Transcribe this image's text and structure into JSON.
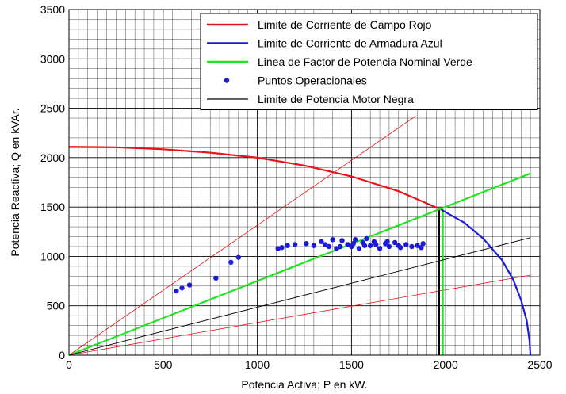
{
  "chart_data": {
    "type": "line",
    "xlabel": "Potencia Activa; P en kW.",
    "ylabel": "Potencia Reactiva; Q en kVAr.",
    "xlim": [
      0,
      2500
    ],
    "ylim": [
      0,
      3500
    ],
    "xticks": [
      0,
      500,
      1000,
      1500,
      2000,
      2500
    ],
    "yticks": [
      0,
      500,
      1000,
      1500,
      2000,
      2500,
      3000,
      3500
    ],
    "grid": "on (major and minor)",
    "legend_position": "top-right",
    "series": [
      {
        "name": "Limite de Corriente de Campo Rojo",
        "color": "#e8141b",
        "style": "line",
        "points": [
          [
            0,
            2110
          ],
          [
            250,
            2105
          ],
          [
            500,
            2085
          ],
          [
            750,
            2050
          ],
          [
            1000,
            2000
          ],
          [
            1250,
            1920
          ],
          [
            1500,
            1810
          ],
          [
            1750,
            1660
          ],
          [
            1975,
            1475
          ]
        ]
      },
      {
        "name": "Limite de Corriente de Armadura Azul",
        "color": "#1c1cd8",
        "style": "line",
        "points": [
          [
            1975,
            1475
          ],
          [
            2100,
            1340
          ],
          [
            2200,
            1180
          ],
          [
            2300,
            960
          ],
          [
            2360,
            760
          ],
          [
            2400,
            560
          ],
          [
            2430,
            350
          ],
          [
            2445,
            150
          ],
          [
            2450,
            0
          ]
        ]
      },
      {
        "name": "Linea de Factor de Potencia Nominal Verde",
        "color": "#22e322",
        "style": "line",
        "points": [
          [
            0,
            0
          ],
          [
            2450,
            1840
          ]
        ]
      },
      {
        "name": "Puntos Operacionales",
        "color": "#1c1cd8",
        "style": "scatter",
        "points": [
          [
            570,
            650
          ],
          [
            600,
            680
          ],
          [
            640,
            710
          ],
          [
            780,
            780
          ],
          [
            860,
            940
          ],
          [
            900,
            990
          ],
          [
            1110,
            1080
          ],
          [
            1130,
            1090
          ],
          [
            1160,
            1110
          ],
          [
            1200,
            1120
          ],
          [
            1260,
            1130
          ],
          [
            1300,
            1110
          ],
          [
            1340,
            1150
          ],
          [
            1380,
            1100
          ],
          [
            1400,
            1170
          ],
          [
            1420,
            1080
          ],
          [
            1450,
            1160
          ],
          [
            1480,
            1120
          ],
          [
            1500,
            1100
          ],
          [
            1520,
            1170
          ],
          [
            1540,
            1080
          ],
          [
            1560,
            1140
          ],
          [
            1580,
            1180
          ],
          [
            1600,
            1110
          ],
          [
            1620,
            1150
          ],
          [
            1650,
            1080
          ],
          [
            1680,
            1130
          ],
          [
            1700,
            1100
          ],
          [
            1730,
            1140
          ],
          [
            1760,
            1090
          ],
          [
            1790,
            1120
          ],
          [
            1820,
            1100
          ],
          [
            1850,
            1110
          ],
          [
            1880,
            1130
          ],
          [
            1360,
            1120
          ],
          [
            1440,
            1100
          ],
          [
            1510,
            1130
          ],
          [
            1570,
            1110
          ],
          [
            1630,
            1120
          ],
          [
            1690,
            1150
          ],
          [
            1750,
            1110
          ],
          [
            1870,
            1090
          ]
        ]
      },
      {
        "name": "Limite de Potencia Motor Negra",
        "color": "#000000",
        "style": "line",
        "points": [
          [
            0,
            0
          ],
          [
            2450,
            1190
          ]
        ]
      }
    ],
    "extra_lines": [
      {
        "color": "#e8141b",
        "points": [
          [
            0,
            0
          ],
          [
            1840,
            2420
          ]
        ]
      },
      {
        "color": "#e8141b",
        "points": [
          [
            0,
            0
          ],
          [
            2450,
            810
          ]
        ]
      },
      {
        "color": "#22e322",
        "points": [
          [
            1985,
            0
          ],
          [
            1985,
            1480
          ]
        ]
      },
      {
        "color": "#000000",
        "points": [
          [
            1965,
            0
          ],
          [
            1965,
            1480
          ]
        ]
      }
    ]
  }
}
